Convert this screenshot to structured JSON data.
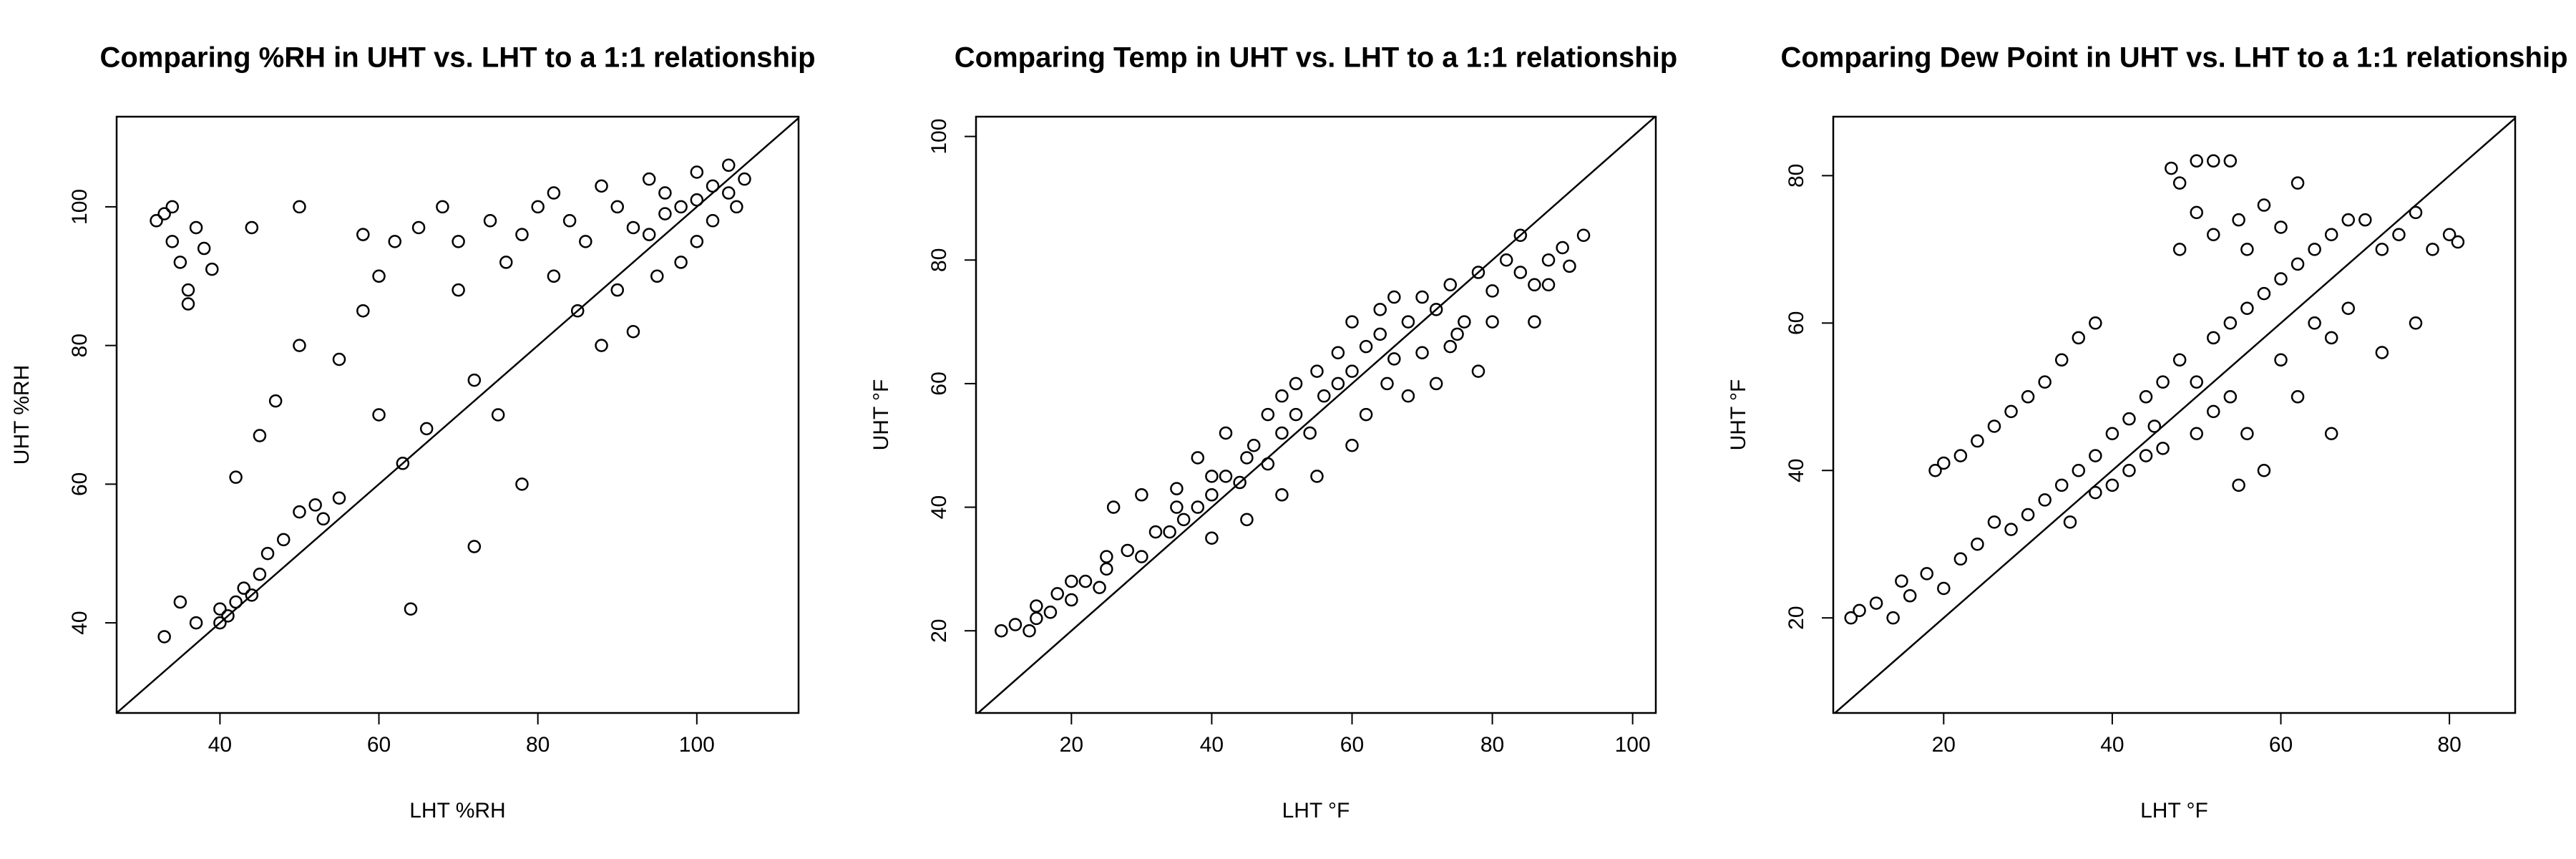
{
  "chart_data": [
    {
      "type": "scatter",
      "title": "Comparing %RH in UHT vs. LHT to a 1:1 relationship",
      "xlabel": "LHT %RH",
      "ylabel": "UHT %RH",
      "xlim": [
        27,
        112.8
      ],
      "ylim": [
        27,
        113
      ],
      "xticks": [
        40,
        60,
        80,
        100
      ],
      "yticks": [
        40,
        60,
        80,
        100
      ],
      "identity_line": true,
      "color": "#000000",
      "x": [
        32,
        33,
        34,
        35,
        36,
        37,
        38,
        34,
        36,
        39,
        40,
        41,
        42,
        40,
        43,
        44,
        35,
        33,
        37,
        45,
        50,
        52,
        53,
        48,
        55,
        46,
        42,
        45,
        47,
        50,
        55,
        58,
        60,
        62,
        65,
        68,
        70,
        72,
        75,
        78,
        64,
        72,
        60,
        63,
        66,
        70,
        74,
        76,
        78,
        80,
        82,
        84,
        86,
        88,
        90,
        92,
        94,
        96,
        98,
        100,
        102,
        104,
        106,
        105,
        100,
        95,
        90,
        85,
        82,
        88,
        92,
        98,
        102,
        100,
        96,
        94,
        104,
        58,
        50,
        44
      ],
      "y": [
        98,
        99,
        95,
        92,
        88,
        97,
        94,
        100,
        86,
        91,
        42,
        41,
        43,
        40,
        45,
        44,
        43,
        38,
        40,
        47,
        56,
        57,
        55,
        52,
        58,
        50,
        61,
        67,
        72,
        80,
        78,
        85,
        90,
        95,
        97,
        100,
        88,
        75,
        70,
        60,
        42,
        51,
        70,
        63,
        68,
        95,
        98,
        92,
        96,
        100,
        102,
        98,
        95,
        103,
        100,
        97,
        104,
        102,
        100,
        105,
        103,
        106,
        104,
        100,
        95,
        90,
        88,
        85,
        90,
        80,
        82,
        92,
        98,
        101,
        99,
        96,
        102,
        96,
        100,
        97
      ]
    },
    {
      "type": "scatter",
      "title": "Comparing Temp in UHT vs. LHT to a 1:1 relationship",
      "xlabel": "LHT °F",
      "ylabel": "UHT °F",
      "xlim": [
        6.4,
        103.3
      ],
      "ylim": [
        6.7,
        103.2
      ],
      "xticks": [
        20,
        40,
        60,
        80,
        100
      ],
      "yticks": [
        20,
        40,
        60,
        80,
        100
      ],
      "identity_line": true,
      "color": "#000000",
      "x": [
        10,
        12,
        14,
        15,
        17,
        18,
        20,
        22,
        24,
        25,
        26,
        28,
        30,
        30,
        32,
        34,
        35,
        36,
        38,
        38,
        40,
        40,
        42,
        42,
        44,
        45,
        46,
        48,
        48,
        50,
        50,
        52,
        52,
        54,
        55,
        56,
        58,
        58,
        60,
        60,
        62,
        62,
        64,
        64,
        65,
        66,
        68,
        68,
        70,
        70,
        72,
        72,
        74,
        75,
        76,
        78,
        78,
        80,
        80,
        82,
        84,
        84,
        86,
        88,
        90,
        91,
        93,
        86,
        60,
        45,
        35,
        25,
        55,
        66,
        74,
        50,
        40,
        20,
        15,
        88
      ],
      "y": [
        20,
        21,
        20,
        24,
        23,
        26,
        25,
        28,
        27,
        30,
        40,
        33,
        32,
        42,
        36,
        36,
        43,
        38,
        40,
        48,
        42,
        35,
        45,
        52,
        44,
        38,
        50,
        47,
        55,
        52,
        42,
        55,
        60,
        52,
        45,
        58,
        60,
        65,
        62,
        50,
        66,
        55,
        68,
        72,
        60,
        64,
        70,
        58,
        74,
        65,
        72,
        60,
        76,
        68,
        70,
        78,
        62,
        75,
        70,
        80,
        78,
        84,
        76,
        80,
        82,
        79,
        84,
        70,
        70,
        48,
        40,
        32,
        62,
        74,
        66,
        58,
        45,
        28,
        22,
        76
      ]
    },
    {
      "type": "scatter",
      "title": "Comparing Dew Point in UHT vs. LHT to a 1:1 relationship",
      "xlabel": "LHT °F",
      "ylabel": "UHT °F",
      "xlim": [
        6.9,
        87.8
      ],
      "ylim": [
        7.1,
        88
      ],
      "xticks": [
        20,
        40,
        60,
        80
      ],
      "yticks": [
        20,
        40,
        60,
        80
      ],
      "identity_line": true,
      "color": "#000000",
      "x": [
        9,
        10,
        12,
        14,
        15,
        16,
        18,
        19,
        20,
        22,
        24,
        26,
        28,
        30,
        32,
        34,
        36,
        38,
        20,
        22,
        24,
        26,
        28,
        30,
        32,
        34,
        35,
        36,
        38,
        40,
        40,
        42,
        42,
        44,
        44,
        45,
        46,
        46,
        47,
        48,
        50,
        52,
        54,
        50,
        48,
        52,
        55,
        56,
        58,
        60,
        62,
        48,
        50,
        50,
        52,
        52,
        54,
        54,
        56,
        56,
        58,
        58,
        60,
        60,
        62,
        62,
        64,
        64,
        66,
        66,
        68,
        68,
        70,
        72,
        74,
        76,
        78,
        80,
        81,
        76,
        72,
        66,
        55,
        38
      ],
      "y": [
        20,
        21,
        22,
        20,
        25,
        23,
        26,
        40,
        41,
        42,
        44,
        46,
        48,
        50,
        52,
        55,
        58,
        60,
        24,
        28,
        30,
        33,
        32,
        34,
        36,
        38,
        33,
        40,
        42,
        45,
        38,
        47,
        40,
        50,
        42,
        46,
        52,
        43,
        81,
        79,
        82,
        82,
        82,
        75,
        70,
        72,
        74,
        70,
        76,
        73,
        79,
        55,
        52,
        45,
        58,
        48,
        60,
        50,
        62,
        45,
        64,
        40,
        66,
        55,
        68,
        50,
        70,
        60,
        72,
        58,
        74,
        62,
        74,
        70,
        72,
        75,
        70,
        72,
        71,
        60,
        56,
        45,
        38,
        37
      ]
    }
  ]
}
